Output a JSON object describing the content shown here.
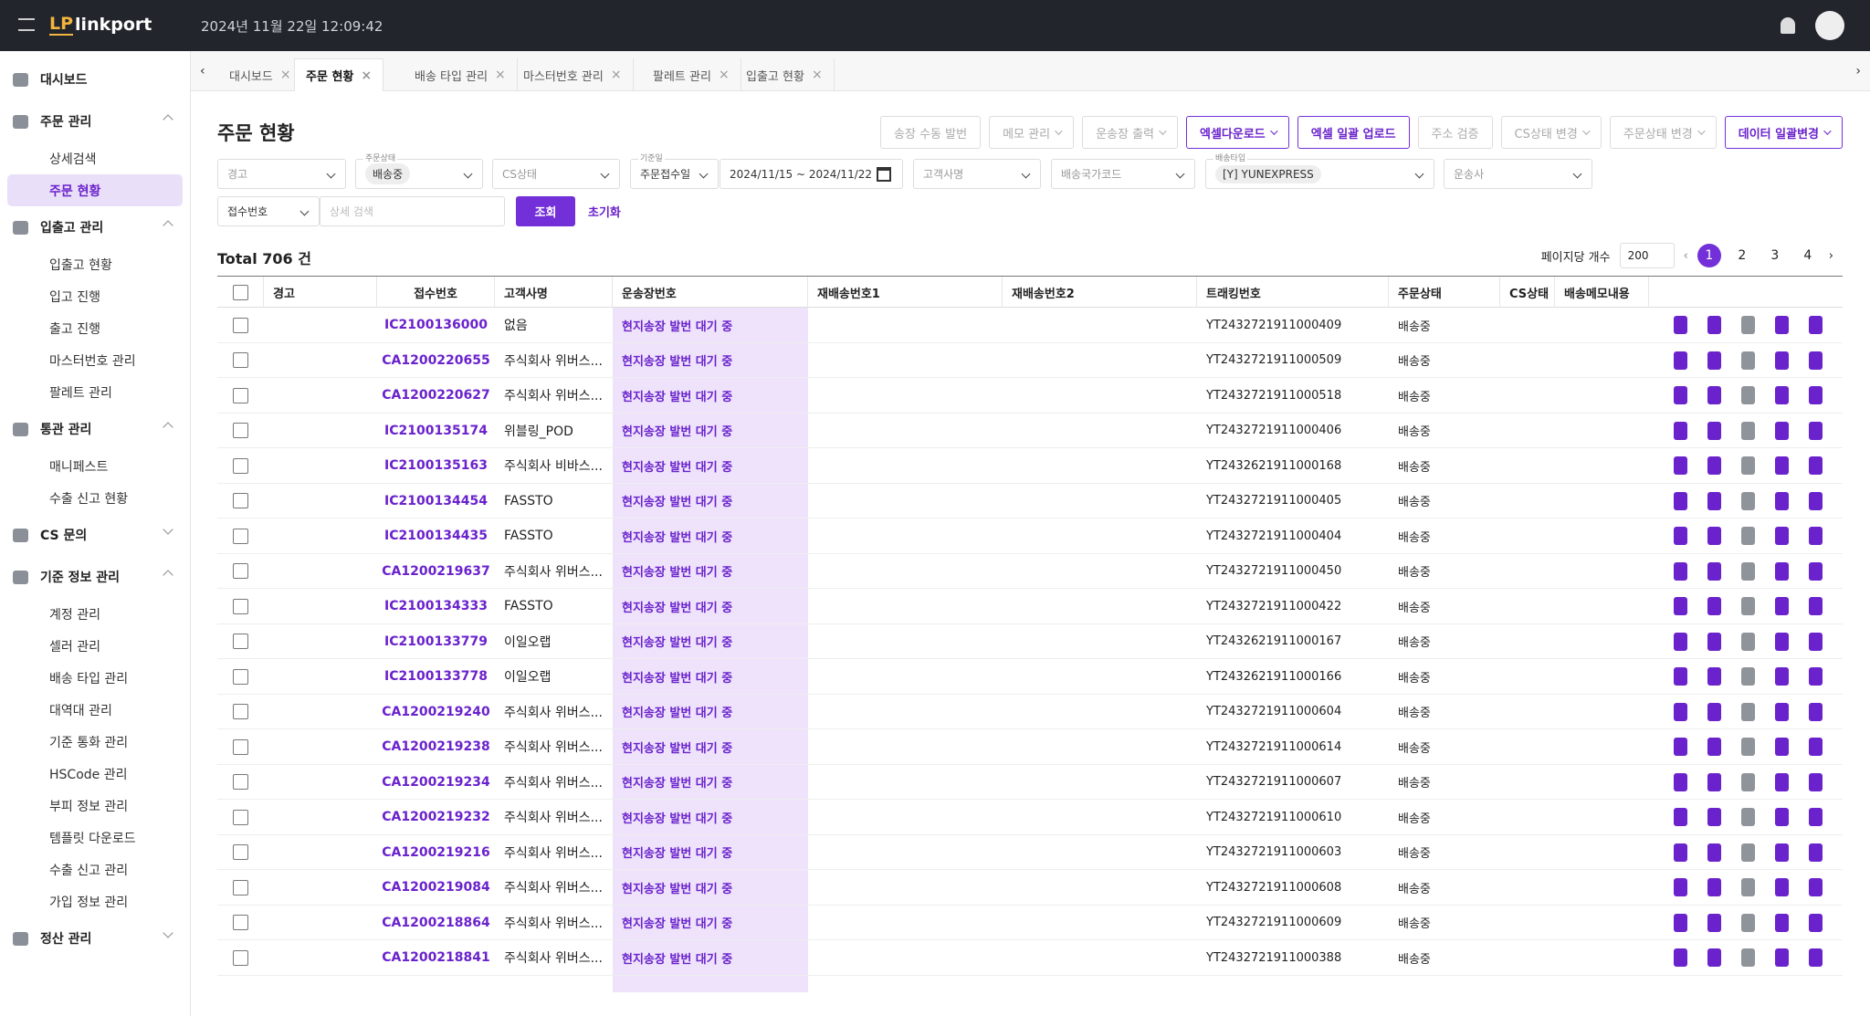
{
  "header": {
    "logo_mark": "LP",
    "logo": "linkport",
    "datetime": "2024년 11월 22일 12:09:42"
  },
  "sidebar": {
    "dashboard": "대시보드",
    "groups": [
      {
        "title": "주문 관리",
        "open": true,
        "items": [
          "상세검색",
          "주문 현황"
        ],
        "active": 1
      },
      {
        "title": "입출고 관리",
        "open": true,
        "items": [
          "입출고 현황",
          "입고 진행",
          "출고 진행",
          "마스터번호 관리",
          "팔레트 관리"
        ]
      },
      {
        "title": "통관 관리",
        "open": true,
        "items": [
          "매니페스트",
          "수출 신고 현황"
        ]
      },
      {
        "title": "CS 문의",
        "open": false,
        "items": []
      },
      {
        "title": "기준 정보 관리",
        "open": true,
        "items": [
          "계정 관리",
          "셀러 관리",
          "배송 타입 관리",
          "대역대 관리",
          "기준 통화 관리",
          "HSCode 관리",
          "부피 정보 관리",
          "템플릿 다운로드",
          "수출 신고 관리",
          "가입 정보 관리"
        ]
      },
      {
        "title": "정산 관리",
        "open": false,
        "items": []
      }
    ]
  },
  "tabs": [
    "대시보드",
    "주문 현황",
    "배송 타입 관리",
    "마스터번호 관리",
    "팔레트 관리",
    "입출고 현황"
  ],
  "active_tab": 1,
  "page": {
    "title": "주문 현황",
    "toolbar": [
      {
        "text": "송장 수동 발번",
        "dropdown": false,
        "active": false
      },
      {
        "text": "메모 관리",
        "dropdown": true,
        "active": false
      },
      {
        "text": "운송장 출력",
        "dropdown": true,
        "active": false
      },
      {
        "text": "엑셀다운로드",
        "dropdown": true,
        "active": true
      },
      {
        "text": "엑셀 일괄 업로드",
        "dropdown": false,
        "active": true
      },
      {
        "text": "주소 검증",
        "dropdown": false,
        "active": false
      },
      {
        "text": "CS상태 변경",
        "dropdown": true,
        "active": false
      },
      {
        "text": "주문상태 변경",
        "dropdown": true,
        "active": false
      },
      {
        "text": "데이터 일괄변경",
        "dropdown": true,
        "active": true
      }
    ],
    "filters": [
      {
        "placeholder": "경고"
      },
      {
        "label": "주문상태",
        "chip": "배송중"
      },
      {
        "placeholder": "CS상태"
      },
      {
        "label": "기준일",
        "value": "주문접수일"
      },
      {
        "value": "2024/11/15 ~ 2024/11/22"
      },
      {
        "placeholder": "고객사명"
      },
      {
        "placeholder": "배송국가코드"
      },
      {
        "label": "배송타입",
        "chip": "[Y] YUNEXPRESS"
      },
      {
        "placeholder": "운송사"
      }
    ],
    "search": {
      "field": "접수번호",
      "placeholder": "상세 검색",
      "button": "조회",
      "reset": "초기화"
    },
    "total": "Total 706 건",
    "page_size_label": "페이지당 개수",
    "page_size": 200,
    "pages": [
      1,
      2,
      3,
      4
    ]
  },
  "table": {
    "columns": [
      "경고",
      "접수번호",
      "고객사명",
      "운송장번호",
      "재배송번호1",
      "재배송번호2",
      "트래킹번호",
      "주문상태",
      "CS상태",
      "배송메모내용"
    ],
    "rows": [
      {
        "id": "IC2100136000",
        "customer": "없음",
        "waybill": "현지송장 발번 대기 중",
        "tracking": "YT2432721911000409",
        "status": "배송중"
      },
      {
        "id": "CA1200220655",
        "customer": "주식회사 위버스...",
        "waybill": "현지송장 발번 대기 중",
        "tracking": "YT2432721911000509",
        "status": "배송중"
      },
      {
        "id": "CA1200220627",
        "customer": "주식회사 위버스...",
        "waybill": "현지송장 발번 대기 중",
        "tracking": "YT2432721911000518",
        "status": "배송중"
      },
      {
        "id": "IC2100135174",
        "customer": "위블링_POD",
        "waybill": "현지송장 발번 대기 중",
        "tracking": "YT2432721911000406",
        "status": "배송중"
      },
      {
        "id": "IC2100135163",
        "customer": "주식회사 비바스...",
        "waybill": "현지송장 발번 대기 중",
        "tracking": "YT2432621911000168",
        "status": "배송중"
      },
      {
        "id": "IC2100134454",
        "customer": "FASSTO",
        "waybill": "현지송장 발번 대기 중",
        "tracking": "YT2432721911000405",
        "status": "배송중"
      },
      {
        "id": "IC2100134435",
        "customer": "FASSTO",
        "waybill": "현지송장 발번 대기 중",
        "tracking": "YT2432721911000404",
        "status": "배송중"
      },
      {
        "id": "CA1200219637",
        "customer": "주식회사 위버스...",
        "waybill": "현지송장 발번 대기 중",
        "tracking": "YT2432721911000450",
        "status": "배송중"
      },
      {
        "id": "IC2100134333",
        "customer": "FASSTO",
        "waybill": "현지송장 발번 대기 중",
        "tracking": "YT2432721911000422",
        "status": "배송중"
      },
      {
        "id": "IC2100133779",
        "customer": "이일오랩",
        "waybill": "현지송장 발번 대기 중",
        "tracking": "YT2432621911000167",
        "status": "배송중"
      },
      {
        "id": "IC2100133778",
        "customer": "이일오랩",
        "waybill": "현지송장 발번 대기 중",
        "tracking": "YT2432621911000166",
        "status": "배송중"
      },
      {
        "id": "CA1200219240",
        "customer": "주식회사 위버스...",
        "waybill": "현지송장 발번 대기 중",
        "tracking": "YT2432721911000604",
        "status": "배송중"
      },
      {
        "id": "CA1200219238",
        "customer": "주식회사 위버스...",
        "waybill": "현지송장 발번 대기 중",
        "tracking": "YT2432721911000614",
        "status": "배송중"
      },
      {
        "id": "CA1200219234",
        "customer": "주식회사 위버스...",
        "waybill": "현지송장 발번 대기 중",
        "tracking": "YT2432721911000607",
        "status": "배송중"
      },
      {
        "id": "CA1200219232",
        "customer": "주식회사 위버스...",
        "waybill": "현지송장 발번 대기 중",
        "tracking": "YT2432721911000610",
        "status": "배송중"
      },
      {
        "id": "CA1200219216",
        "customer": "주식회사 위버스...",
        "waybill": "현지송장 발번 대기 중",
        "tracking": "YT2432721911000603",
        "status": "배송중"
      },
      {
        "id": "CA1200219084",
        "customer": "주식회사 위버스...",
        "waybill": "현지송장 발번 대기 중",
        "tracking": "YT2432721911000608",
        "status": "배송중"
      },
      {
        "id": "CA1200218864",
        "customer": "주식회사 위버스...",
        "waybill": "현지송장 발번 대기 중",
        "tracking": "YT2432721911000609",
        "status": "배송중"
      },
      {
        "id": "CA1200218841",
        "customer": "주식회사 위버스...",
        "waybill": "현지송장 발번 대기 중",
        "tracking": "YT2432721911000388",
        "status": "배송중"
      }
    ]
  }
}
